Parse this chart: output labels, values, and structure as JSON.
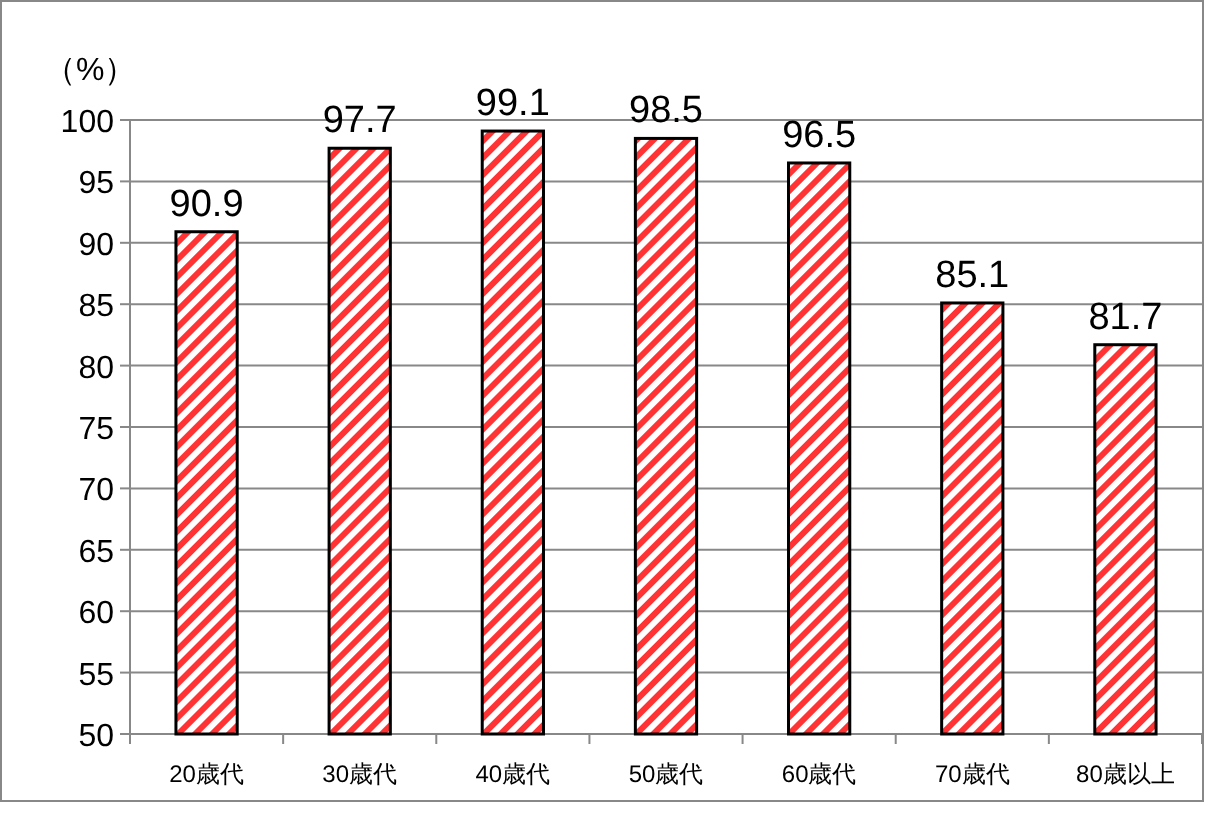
{
  "chart_data": {
    "type": "bar",
    "ylabel": "（%）",
    "categories": [
      "20歳代",
      "30歳代",
      "40歳代",
      "50歳代",
      "60歳代",
      "70歳代",
      "80歳以上"
    ],
    "values": [
      90.9,
      97.7,
      99.1,
      98.5,
      96.5,
      85.1,
      81.7
    ],
    "color": "#ff3333",
    "ylim": [
      50,
      100
    ],
    "yticks": [
      50,
      55,
      60,
      65,
      70,
      75,
      80,
      85,
      90,
      95,
      100
    ],
    "grid": "y",
    "data_labels": true
  }
}
